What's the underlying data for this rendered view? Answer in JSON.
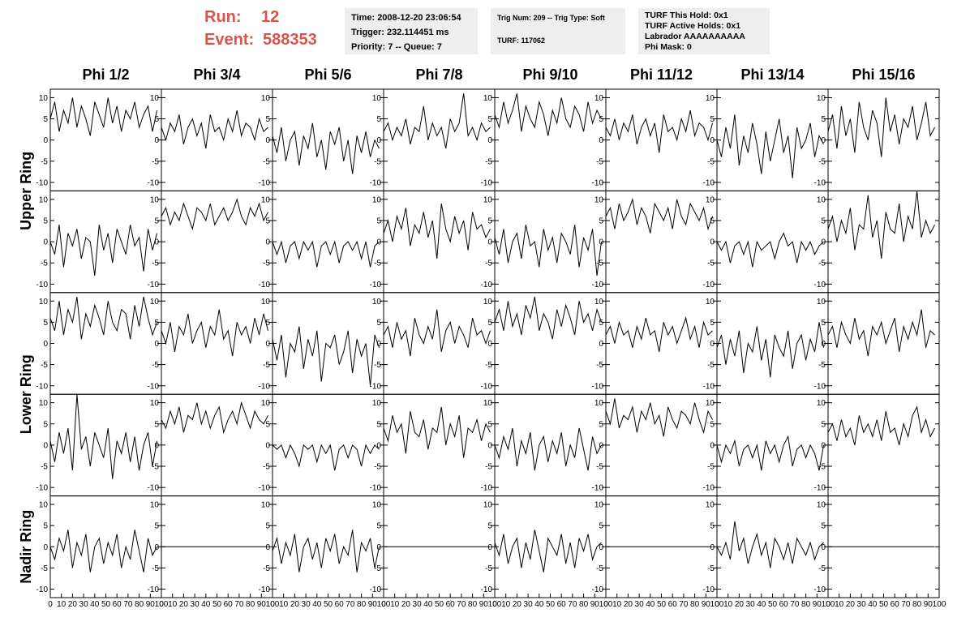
{
  "header": {
    "run_label": "Run:",
    "run": "12",
    "event_label": "Event:",
    "event": "588353",
    "box1": [
      "Time: 2008-12-20 23:06:54",
      "Trigger: 232.114451 ms",
      "Priority: 7 -- Queue: 7"
    ],
    "box2": [
      "Trig Num: 209 -- Trig Type: Soft",
      "TURF: 117062"
    ],
    "box3": [
      "TURF This Hold: 0x1",
      "TURF Active Holds: 0x1",
      "Labrador AAAAAAAAAA",
      "Phi Mask: 0"
    ]
  },
  "chart_data": {
    "type": "waveform-grid",
    "columns": [
      "Phi 1/2",
      "Phi 3/4",
      "Phi 5/6",
      "Phi 7/8",
      "Phi 9/10",
      "Phi 11/12",
      "Phi 13/14",
      "Phi 15/16"
    ],
    "rows": [
      "Upper Ring",
      "Lower Ring",
      "Nadir Ring"
    ],
    "xlim": [
      0,
      100
    ],
    "xticks": [
      0,
      10,
      20,
      30,
      40,
      50,
      60,
      70,
      80,
      90,
      100
    ],
    "ylim": [
      -12,
      12
    ],
    "yticks": [
      -10,
      -5,
      0,
      5,
      10
    ],
    "color": "#000000",
    "x": [
      0,
      4,
      8,
      12,
      16,
      20,
      24,
      28,
      32,
      36,
      40,
      44,
      48,
      52,
      56,
      60,
      64,
      68,
      72,
      76,
      80,
      84,
      88,
      92,
      96
    ],
    "panels": [
      [
        [
          5,
          9,
          2,
          7,
          4,
          10,
          3,
          8,
          5,
          1,
          9,
          6,
          3,
          10,
          4,
          8,
          2,
          7,
          5,
          9,
          3,
          6,
          8,
          2,
          7
        ],
        [
          3,
          0,
          4,
          2,
          6,
          -1,
          3,
          5,
          1,
          4,
          -2,
          6,
          2,
          3,
          0,
          5,
          2,
          7,
          1,
          4,
          3,
          0,
          5,
          2,
          3
        ],
        [
          1,
          -3,
          3,
          -5,
          0,
          2,
          -6,
          1,
          -2,
          4,
          -4,
          0,
          -7,
          2,
          -1,
          3,
          -5,
          0,
          -8,
          1,
          -3,
          2,
          -4,
          0,
          -2
        ],
        [
          2,
          4,
          0,
          3,
          1,
          5,
          -1,
          3,
          2,
          8,
          0,
          4,
          1,
          3,
          -2,
          5,
          2,
          4,
          11,
          1,
          3,
          0,
          4,
          2,
          3
        ],
        [
          6,
          3,
          9,
          4,
          7,
          11,
          2,
          8,
          5,
          3,
          9,
          6,
          1,
          7,
          4,
          10,
          5,
          3,
          8,
          6,
          2,
          9,
          4,
          7,
          5
        ],
        [
          3,
          1,
          5,
          0,
          4,
          2,
          6,
          -1,
          3,
          5,
          1,
          4,
          -3,
          6,
          2,
          3,
          0,
          5,
          2,
          7,
          1,
          4,
          3,
          0,
          4
        ],
        [
          0,
          -4,
          3,
          -2,
          6,
          -6,
          1,
          -3,
          4,
          -1,
          -8,
          2,
          -5,
          0,
          5,
          -3,
          1,
          -9,
          3,
          -2,
          0,
          4,
          -4,
          1,
          -1
        ],
        [
          2,
          6,
          -2,
          8,
          1,
          5,
          -3,
          9,
          3,
          0,
          7,
          4,
          -4,
          10,
          2,
          6,
          -1,
          5,
          3,
          8,
          0,
          4,
          9,
          1,
          3
        ]
      ],
      [
        [
          0,
          -3,
          4,
          -6,
          2,
          -1,
          3,
          -4,
          1,
          0,
          -8,
          4,
          -2,
          2,
          -5,
          3,
          0,
          -3,
          4,
          -1,
          1,
          -7,
          3,
          -2,
          2
        ],
        [
          6,
          8,
          4,
          7,
          5,
          9,
          6,
          3,
          8,
          7,
          5,
          9,
          4,
          6,
          8,
          5,
          7,
          10,
          6,
          4,
          8,
          6,
          9,
          5,
          7
        ],
        [
          0,
          -3,
          0,
          -5,
          -1,
          0,
          -4,
          0,
          -2,
          0,
          -6,
          -1,
          0,
          -3,
          0,
          -5,
          -1,
          0,
          -2,
          0,
          -4,
          0,
          -6,
          -1,
          0
        ],
        [
          2,
          5,
          0,
          6,
          3,
          8,
          -1,
          4,
          2,
          7,
          1,
          5,
          -4,
          9,
          3,
          0,
          6,
          2,
          5,
          -2,
          7,
          3,
          4,
          1,
          3
        ],
        [
          1,
          -3,
          3,
          -5,
          0,
          2,
          -4,
          4,
          -1,
          0,
          -6,
          3,
          -2,
          1,
          -5,
          2,
          0,
          -3,
          4,
          -6,
          1,
          -2,
          3,
          -8,
          0
        ],
        [
          6,
          8,
          3,
          9,
          5,
          7,
          10,
          4,
          8,
          6,
          2,
          9,
          7,
          5,
          8,
          3,
          10,
          6,
          4,
          9,
          7,
          5,
          8,
          3,
          6
        ],
        [
          0,
          -2,
          0,
          -5,
          -1,
          0,
          -3,
          0,
          -6,
          0,
          -2,
          -1,
          0,
          -4,
          0,
          2,
          -1,
          0,
          -5,
          0,
          -2,
          0,
          -3,
          -1,
          0
        ],
        [
          3,
          6,
          0,
          5,
          2,
          8,
          -2,
          4,
          3,
          11,
          1,
          5,
          -4,
          7,
          3,
          2,
          9,
          0,
          6,
          3,
          12,
          1,
          5,
          2,
          4
        ]
      ],
      [
        [
          6,
          3,
          10,
          2,
          8,
          5,
          11,
          1,
          7,
          4,
          9,
          6,
          2,
          10,
          5,
          3,
          8,
          7,
          1,
          9,
          4,
          11,
          6,
          2,
          5
        ],
        [
          3,
          0,
          5,
          -2,
          4,
          2,
          7,
          0,
          3,
          5,
          -1,
          4,
          2,
          8,
          1,
          3,
          -3,
          5,
          2,
          4,
          0,
          6,
          2,
          7,
          3
        ],
        [
          1,
          -4,
          2,
          -8,
          0,
          -2,
          4,
          -6,
          1,
          -3,
          3,
          -9,
          0,
          -1,
          2,
          -5,
          -2,
          3,
          -7,
          1,
          -3,
          0,
          -10,
          2,
          -1
        ],
        [
          2,
          4,
          -1,
          5,
          1,
          3,
          -3,
          6,
          2,
          0,
          4,
          1,
          8,
          -2,
          3,
          5,
          0,
          4,
          2,
          -1,
          6,
          2,
          3,
          0,
          3
        ],
        [
          5,
          8,
          3,
          10,
          4,
          7,
          2,
          9,
          6,
          11,
          3,
          7,
          5,
          1,
          8,
          4,
          9,
          6,
          2,
          10,
          5,
          7,
          3,
          8,
          5
        ],
        [
          2,
          4,
          0,
          5,
          2,
          3,
          -1,
          4,
          1,
          6,
          2,
          3,
          -2,
          5,
          2,
          4,
          0,
          3,
          6,
          1,
          4,
          -1,
          5,
          2,
          3
        ],
        [
          -1,
          2,
          -5,
          1,
          -3,
          3,
          -7,
          0,
          -2,
          4,
          -4,
          1,
          -8,
          2,
          -1,
          -3,
          3,
          -6,
          0,
          2,
          -4,
          1,
          -2,
          5,
          -1
        ],
        [
          2,
          4,
          -1,
          5,
          2,
          0,
          6,
          1,
          3,
          -3,
          4,
          2,
          5,
          0,
          3,
          6,
          -2,
          4,
          1,
          5,
          2,
          8,
          -1,
          3,
          2
        ]
      ],
      [
        [
          1,
          -4,
          3,
          -2,
          4,
          -6,
          12,
          -1,
          2,
          -5,
          3,
          0,
          -3,
          4,
          -8,
          1,
          -2,
          3,
          -4,
          2,
          -6,
          0,
          3,
          -5,
          1
        ],
        [
          6,
          4,
          8,
          5,
          9,
          3,
          7,
          6,
          10,
          5,
          8,
          4,
          7,
          9,
          3,
          6,
          8,
          5,
          10,
          7,
          4,
          8,
          6,
          5,
          7
        ],
        [
          0,
          -1,
          0,
          -3,
          0,
          -2,
          -5,
          0,
          -1,
          0,
          -4,
          0,
          -2,
          0,
          -6,
          -1,
          0,
          -3,
          0,
          -1,
          -5,
          0,
          -2,
          0,
          -1
        ],
        [
          4,
          1,
          7,
          3,
          5,
          -2,
          8,
          3,
          2,
          6,
          -1,
          4,
          3,
          9,
          0,
          5,
          2,
          7,
          -3,
          4,
          3,
          6,
          1,
          5,
          3
        ],
        [
          0,
          -3,
          2,
          -1,
          4,
          -5,
          1,
          -2,
          3,
          -6,
          0,
          2,
          -4,
          1,
          -2,
          3,
          -5,
          0,
          -3,
          4,
          -1,
          -6,
          2,
          -2,
          0
        ],
        [
          8,
          5,
          11,
          4,
          7,
          6,
          9,
          3,
          8,
          6,
          10,
          5,
          7,
          2,
          9,
          6,
          4,
          8,
          7,
          5,
          10,
          6,
          3,
          8,
          6
        ],
        [
          0,
          -4,
          0,
          -2,
          1,
          -5,
          -1,
          0,
          -3,
          0,
          -6,
          1,
          -2,
          0,
          -4,
          0,
          2,
          -5,
          -1,
          0,
          -3,
          0,
          -2,
          -6,
          0
        ],
        [
          3,
          5,
          1,
          6,
          2,
          4,
          0,
          7,
          3,
          5,
          2,
          6,
          1,
          8,
          3,
          4,
          0,
          5,
          2,
          7,
          9,
          3,
          6,
          2,
          4
        ]
      ],
      [
        [
          0,
          -3,
          2,
          -1,
          4,
          -5,
          1,
          -2,
          3,
          -6,
          0,
          2,
          -4,
          1,
          -2,
          3,
          -5,
          0,
          -3,
          4,
          -1,
          -6,
          2,
          -2,
          0
        ],
        [
          0,
          0,
          0,
          0,
          0,
          0,
          0,
          0,
          0,
          0,
          0,
          0,
          0,
          0,
          0,
          0,
          0,
          0,
          0,
          0,
          0,
          0,
          0,
          0,
          0
        ],
        [
          -1,
          2,
          -4,
          1,
          -2,
          3,
          -6,
          0,
          2,
          -3,
          1,
          -5,
          2,
          -1,
          3,
          -4,
          0,
          -2,
          4,
          -6,
          1,
          -1,
          2,
          -5,
          0
        ],
        [
          0,
          0,
          0,
          0,
          0,
          0,
          0,
          0,
          0,
          0,
          0,
          0,
          0,
          0,
          0,
          0,
          0,
          0,
          0,
          0,
          0,
          0,
          0,
          0,
          0
        ],
        [
          1,
          -2,
          3,
          -4,
          0,
          2,
          -5,
          1,
          -3,
          4,
          -1,
          -6,
          2,
          0,
          -2,
          3,
          -4,
          1,
          -5,
          2,
          -1,
          3,
          -3,
          0,
          1
        ],
        [
          0,
          0,
          0,
          0,
          0,
          0,
          0,
          0,
          0,
          0,
          0,
          0,
          0,
          0,
          0,
          0,
          0,
          0,
          0,
          0,
          0,
          0,
          0,
          0,
          0
        ],
        [
          0,
          -2,
          1,
          -3,
          6,
          -1,
          2,
          -4,
          0,
          3,
          -2,
          1,
          -5,
          2,
          0,
          -3,
          1,
          -4,
          2,
          0,
          -2,
          1,
          -3,
          0,
          1
        ],
        [
          0,
          0,
          0,
          0,
          0,
          0,
          0,
          0,
          0,
          0,
          0,
          0,
          0,
          0,
          0,
          0,
          0,
          0,
          0,
          0,
          0,
          0,
          0,
          0,
          0
        ]
      ]
    ]
  }
}
